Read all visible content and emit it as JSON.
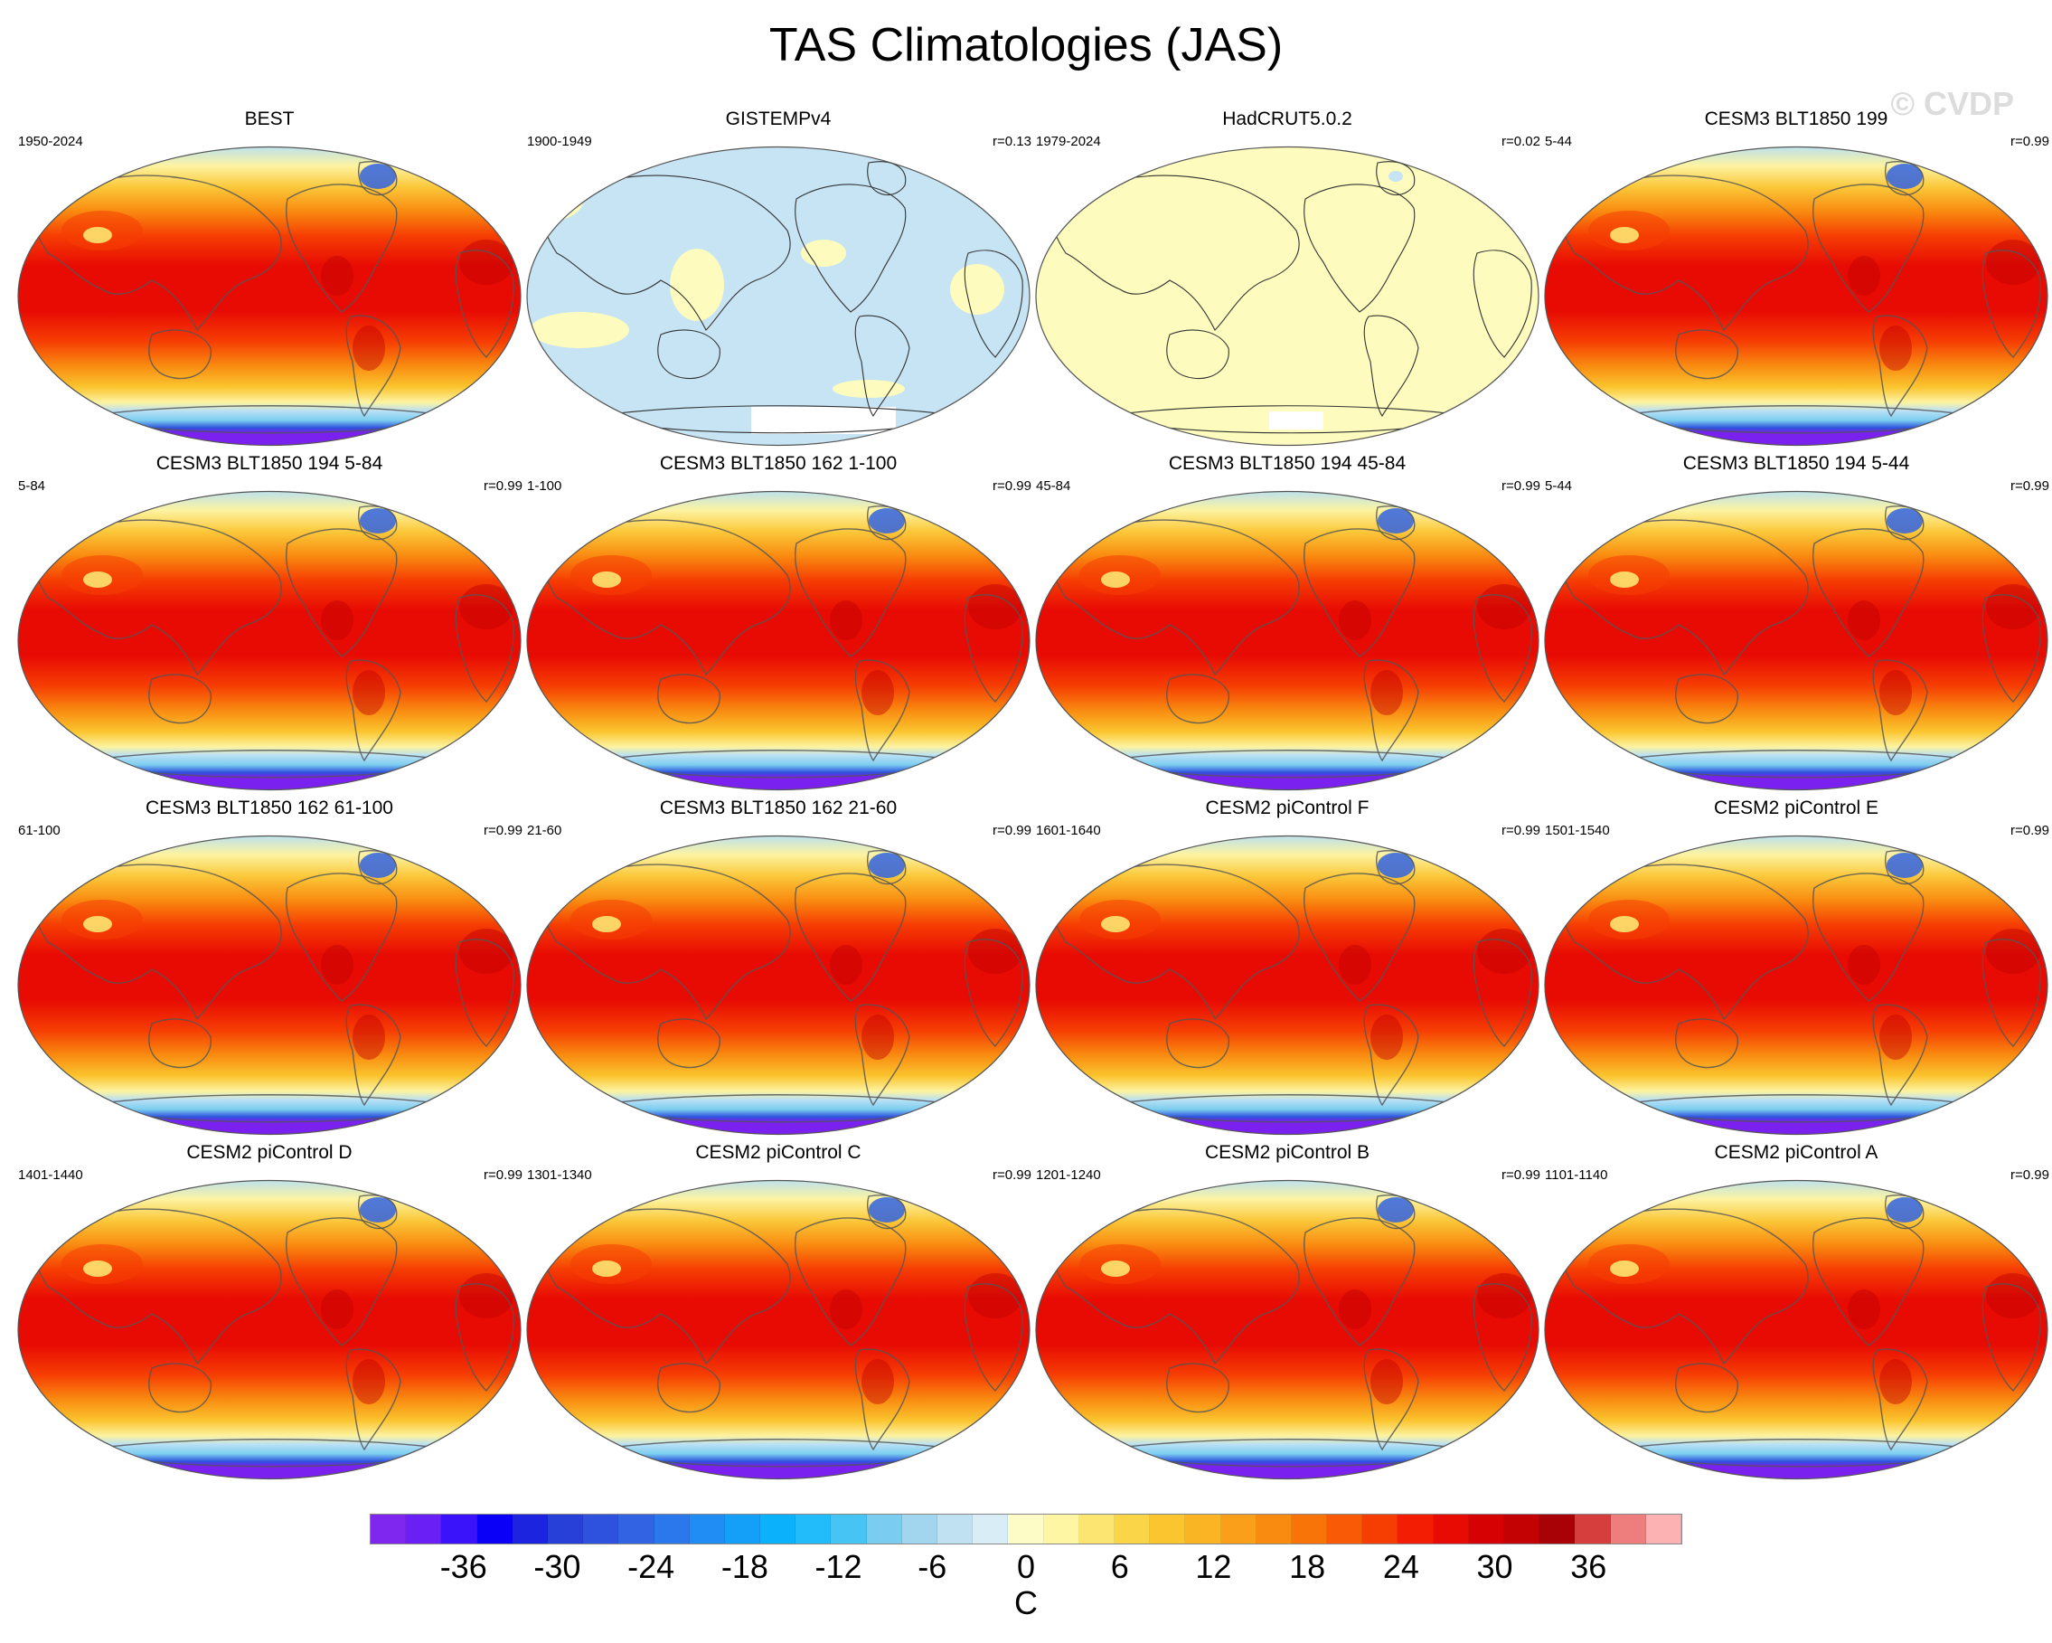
{
  "title": "TAS Climatologies (JAS)",
  "watermark": "© CVDP",
  "panels": [
    {
      "title": "BEST",
      "years": "1950-2024",
      "r": "",
      "style": "obs"
    },
    {
      "title": "GISTEMPv4",
      "years": "1900-1949",
      "r": "r=0.13",
      "style": "anom-blue"
    },
    {
      "title": "HadCRUT5.0.2",
      "years": "1979-2024",
      "r": "r=0.02",
      "style": "anom-yellow"
    },
    {
      "title": "CESM3 BLT1850 199",
      "years": "5-44",
      "r": "r=0.99",
      "style": "model"
    },
    {
      "title": "CESM3 BLT1850 194 5-84",
      "years": "5-84",
      "r": "r=0.99",
      "style": "model"
    },
    {
      "title": "CESM3 BLT1850 162 1-100",
      "years": "1-100",
      "r": "r=0.99",
      "style": "model"
    },
    {
      "title": "CESM3 BLT1850 194 45-84",
      "years": "45-84",
      "r": "r=0.99",
      "style": "model"
    },
    {
      "title": "CESM3 BLT1850 194 5-44",
      "years": "5-44",
      "r": "r=0.99",
      "style": "model"
    },
    {
      "title": "CESM3 BLT1850 162 61-100",
      "years": "61-100",
      "r": "r=0.99",
      "style": "model"
    },
    {
      "title": "CESM3 BLT1850 162 21-60",
      "years": "21-60",
      "r": "r=0.99",
      "style": "model"
    },
    {
      "title": "CESM2 piControl F",
      "years": "1601-1640",
      "r": "r=0.99",
      "style": "model"
    },
    {
      "title": "CESM2 piControl E",
      "years": "1501-1540",
      "r": "r=0.99",
      "style": "model"
    },
    {
      "title": "CESM2 piControl D",
      "years": "1401-1440",
      "r": "r=0.99",
      "style": "model"
    },
    {
      "title": "CESM2 piControl C",
      "years": "1301-1340",
      "r": "r=0.99",
      "style": "model"
    },
    {
      "title": "CESM2 piControl B",
      "years": "1201-1240",
      "r": "r=0.99",
      "style": "model"
    },
    {
      "title": "CESM2 piControl A",
      "years": "1101-1140",
      "r": "r=0.99",
      "style": "model"
    }
  ],
  "colorbar": {
    "unit": "C",
    "tick_labels": [
      "-36",
      "-30",
      "-24",
      "-18",
      "-12",
      "-6",
      "0",
      "6",
      "12",
      "18",
      "24",
      "30",
      "36"
    ],
    "tick_values": [
      -36,
      -30,
      -24,
      -18,
      -12,
      -6,
      0,
      6,
      12,
      18,
      24,
      30,
      36
    ],
    "range": [
      -42,
      42
    ],
    "colors": [
      "#7f26ef",
      "#6a1ff5",
      "#3a13fb",
      "#0a00f7",
      "#1d24e0",
      "#2741d8",
      "#2e52dd",
      "#3163e2",
      "#2b78ec",
      "#1f8df3",
      "#149ff8",
      "#0cb1fb",
      "#22bcfb",
      "#46c4f4",
      "#7bcdef",
      "#a2d6ef",
      "#bfe1f1",
      "#d8edf5",
      "#fefcc6",
      "#fff6a3",
      "#fde571",
      "#fbd548",
      "#fbc52f",
      "#fbb423",
      "#f99f1a",
      "#f98b10",
      "#f97408",
      "#f95a05",
      "#f63e03",
      "#f21d02",
      "#e80b03",
      "#d50103",
      "#c30204",
      "#a80206",
      "#d63e3e",
      "#ee7d7d",
      "#fcb2b2"
    ]
  },
  "palette": {
    "ocean_polar": "#b7e0f6",
    "antarctica": "#7a20ef",
    "hot_core": "#e80b03",
    "coast_line": "#555555",
    "anom_blue": "#c6e4f4",
    "anom_yellow": "#fdfbbd"
  }
}
